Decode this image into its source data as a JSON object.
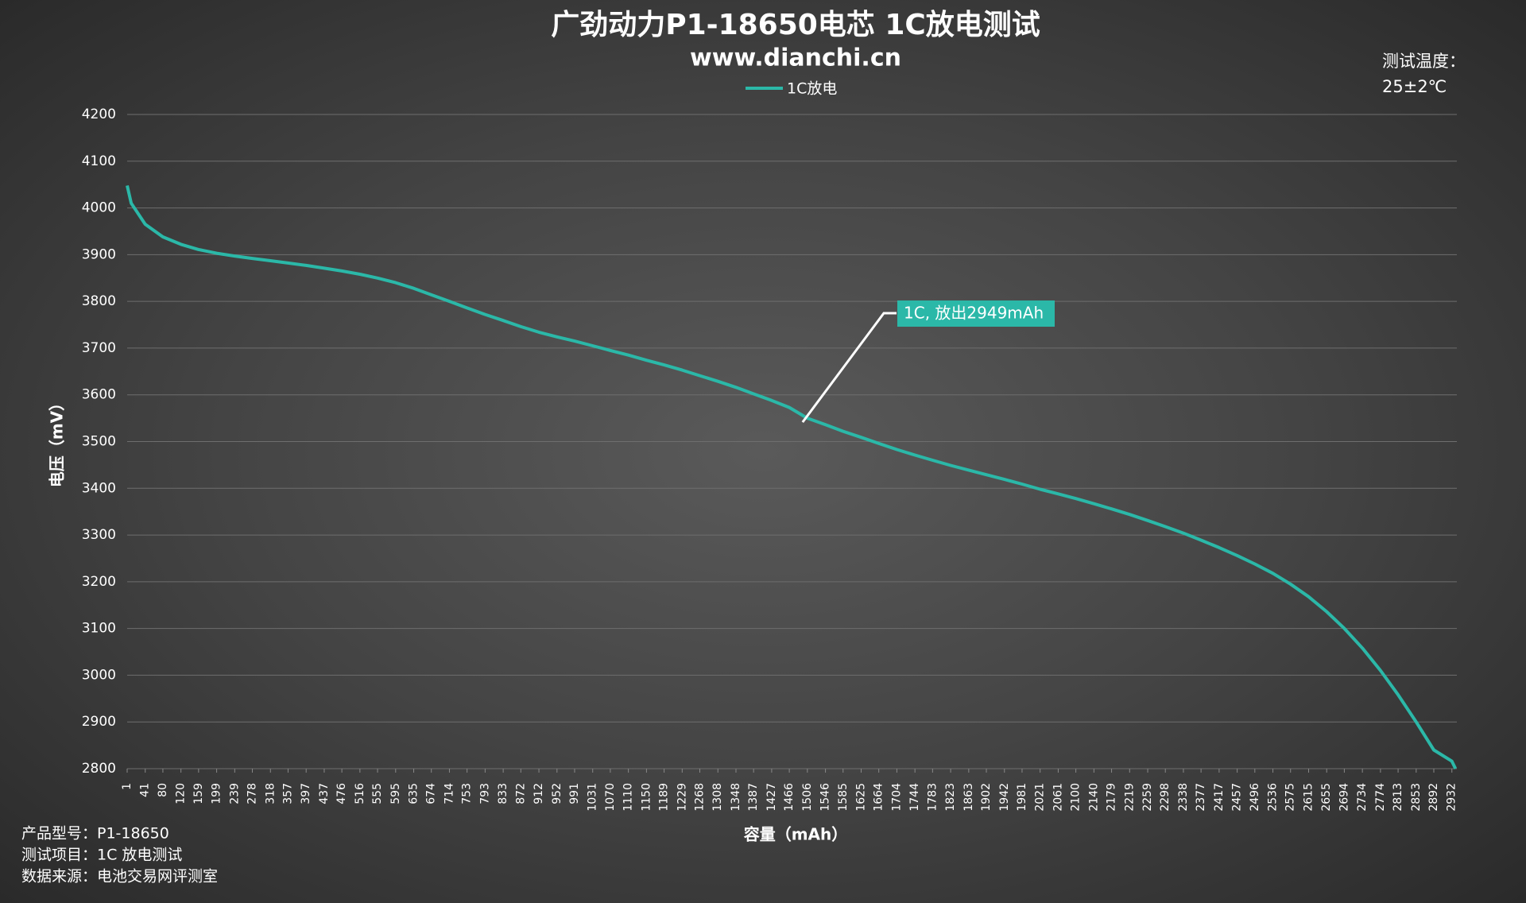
{
  "chart_data": {
    "type": "line",
    "title": "广劲动力P1-18650电芯 1C放电测试",
    "subtitle": "www.dianchi.cn",
    "temperature_label": "测试温度：",
    "temperature_value": "25±2℃",
    "x_label": "容量（mAh）",
    "y_label": "电压（mV）",
    "footer": [
      "产品型号：P1-18650",
      "测试项目：1C 放电测试",
      "数据来源：电池交易网评测室"
    ],
    "annotation": "1C, 放出2949mAh",
    "grid": true,
    "xlim": [
      1,
      2943
    ],
    "ylim": [
      2800,
      4200
    ],
    "yticks": [
      2800,
      2900,
      3000,
      3100,
      3200,
      3300,
      3400,
      3500,
      3600,
      3700,
      3800,
      3900,
      4000,
      4100,
      4200
    ],
    "xticks": [
      1,
      41,
      80,
      120,
      159,
      199,
      239,
      278,
      318,
      357,
      397,
      437,
      476,
      516,
      555,
      595,
      635,
      674,
      714,
      753,
      793,
      833,
      872,
      912,
      952,
      991,
      1031,
      1070,
      1110,
      1150,
      1189,
      1229,
      1268,
      1308,
      1348,
      1387,
      1427,
      1466,
      1506,
      1546,
      1585,
      1625,
      1664,
      1704,
      1744,
      1783,
      1823,
      1863,
      1902,
      1942,
      1981,
      2021,
      2061,
      2100,
      2140,
      2179,
      2219,
      2259,
      2298,
      2338,
      2377,
      2417,
      2457,
      2496,
      2536,
      2575,
      2615,
      2655,
      2694,
      2734,
      2774,
      2813,
      2853,
      2892,
      2932
    ],
    "x": [
      1,
      10,
      41,
      80,
      120,
      159,
      199,
      239,
      278,
      318,
      357,
      397,
      437,
      476,
      516,
      555,
      595,
      635,
      674,
      714,
      753,
      793,
      833,
      872,
      912,
      952,
      991,
      1031,
      1070,
      1110,
      1150,
      1189,
      1229,
      1268,
      1308,
      1348,
      1387,
      1427,
      1466,
      1506,
      1546,
      1585,
      1625,
      1664,
      1704,
      1744,
      1783,
      1823,
      1863,
      1902,
      1942,
      1981,
      2021,
      2061,
      2100,
      2140,
      2179,
      2219,
      2259,
      2298,
      2338,
      2377,
      2417,
      2457,
      2496,
      2536,
      2575,
      2615,
      2655,
      2694,
      2734,
      2774,
      2813,
      2853,
      2892,
      2932,
      2940
    ],
    "series": [
      {
        "name": "1C放电",
        "color": "#2bb8a8",
        "values": [
          4048,
          4010,
          3965,
          3938,
          3922,
          3911,
          3903,
          3897,
          3892,
          3887,
          3882,
          3877,
          3871,
          3865,
          3858,
          3850,
          3840,
          3828,
          3814,
          3800,
          3786,
          3772,
          3759,
          3746,
          3734,
          3724,
          3715,
          3705,
          3695,
          3685,
          3674,
          3664,
          3653,
          3641,
          3629,
          3616,
          3602,
          3588,
          3573,
          3550,
          3536,
          3522,
          3509,
          3496,
          3483,
          3471,
          3460,
          3449,
          3439,
          3429,
          3419,
          3409,
          3398,
          3388,
          3378,
          3367,
          3356,
          3344,
          3331,
          3318,
          3304,
          3289,
          3273,
          3256,
          3238,
          3218,
          3195,
          3168,
          3136,
          3100,
          3058,
          3010,
          2958,
          2900,
          2840,
          2816,
          2800
        ]
      }
    ]
  }
}
